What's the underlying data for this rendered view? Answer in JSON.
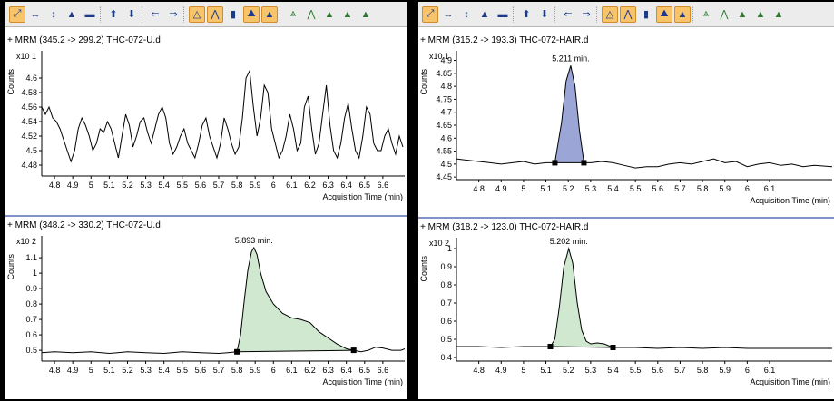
{
  "toolbar_icons": [
    "autoscale-icon",
    "zoom-x-icon",
    "zoom-y-icon",
    "peak-label-icon",
    "baseline-icon",
    "export-icon",
    "copy-icon",
    "back-icon",
    "forward-icon",
    "integrate-icon",
    "manual-integrate-icon",
    "bar-chart-icon",
    "peak-find-icon",
    "threshold-icon",
    "smooth-icon",
    "spectrum-icon",
    "overlay-icon",
    "compare-icon",
    "zoom-peak-icon",
    "more-icon"
  ],
  "panels": [
    {
      "charts": [
        {
          "title": "MRM (345.2 -> 299.2) THC-072-U.d",
          "ylabel": "Counts",
          "multiplier": "x10 1",
          "xlabel": "Acquisition Time (min)",
          "peak_label": "",
          "chart_data": {
            "type": "line",
            "xlim": [
              4.73,
              6.72
            ],
            "ylim": [
              4.465,
              4.635
            ],
            "xticks": [
              "4.8",
              "4.9",
              "5",
              "5.1",
              "5.2",
              "5.3",
              "5.4",
              "5.5",
              "5.6",
              "5.7",
              "5.8",
              "5.9",
              "6",
              "6.1",
              "6.2",
              "6.3",
              "6.4",
              "6.5",
              "6.6"
            ],
            "yticks": [
              "4.48",
              "4.5",
              "4.52",
              "4.54",
              "4.56",
              "4.58",
              "4.6"
            ],
            "x": [
              4.73,
              4.75,
              4.77,
              4.79,
              4.81,
              4.83,
              4.85,
              4.87,
              4.89,
              4.91,
              4.93,
              4.95,
              4.97,
              4.99,
              5.01,
              5.03,
              5.05,
              5.07,
              5.09,
              5.11,
              5.13,
              5.15,
              5.17,
              5.19,
              5.21,
              5.23,
              5.25,
              5.27,
              5.29,
              5.31,
              5.33,
              5.35,
              5.37,
              5.39,
              5.41,
              5.43,
              5.45,
              5.47,
              5.49,
              5.51,
              5.53,
              5.55,
              5.57,
              5.59,
              5.61,
              5.63,
              5.65,
              5.67,
              5.69,
              5.71,
              5.73,
              5.75,
              5.77,
              5.79,
              5.81,
              5.83,
              5.85,
              5.87,
              5.89,
              5.91,
              5.93,
              5.95,
              5.97,
              5.99,
              6.01,
              6.03,
              6.05,
              6.07,
              6.09,
              6.11,
              6.13,
              6.15,
              6.17,
              6.19,
              6.21,
              6.23,
              6.25,
              6.27,
              6.29,
              6.31,
              6.33,
              6.35,
              6.37,
              6.39,
              6.41,
              6.43,
              6.45,
              6.47,
              6.49,
              6.51,
              6.53,
              6.55,
              6.57,
              6.59,
              6.61,
              6.63,
              6.65,
              6.67,
              6.69,
              6.71
            ],
            "y": [
              4.56,
              4.55,
              4.56,
              4.545,
              4.54,
              4.53,
              4.515,
              4.5,
              4.485,
              4.5,
              4.53,
              4.545,
              4.535,
              4.52,
              4.5,
              4.51,
              4.53,
              4.525,
              4.54,
              4.53,
              4.51,
              4.49,
              4.52,
              4.55,
              4.535,
              4.505,
              4.52,
              4.54,
              4.545,
              4.525,
              4.51,
              4.53,
              4.55,
              4.56,
              4.545,
              4.51,
              4.495,
              4.505,
              4.52,
              4.53,
              4.51,
              4.5,
              4.49,
              4.51,
              4.535,
              4.545,
              4.52,
              4.505,
              4.49,
              4.51,
              4.545,
              4.53,
              4.51,
              4.495,
              4.505,
              4.545,
              4.6,
              4.61,
              4.56,
              4.52,
              4.545,
              4.59,
              4.58,
              4.53,
              4.51,
              4.49,
              4.5,
              4.52,
              4.55,
              4.53,
              4.5,
              4.51,
              4.56,
              4.575,
              4.53,
              4.495,
              4.51,
              4.55,
              4.59,
              4.535,
              4.5,
              4.49,
              4.51,
              4.545,
              4.565,
              4.53,
              4.5,
              4.49,
              4.52,
              4.56,
              4.55,
              4.51,
              4.5,
              4.5,
              4.52,
              4.53,
              4.51,
              4.495,
              4.52,
              4.505
            ]
          }
        },
        {
          "title": "MRM (348.2 -> 330.2) THC-072-U.d",
          "ylabel": "Counts",
          "multiplier": "x10 2",
          "xlabel": "Acquisition Time (min)",
          "peak_label": "5.893 min.",
          "chart_data": {
            "type": "area",
            "xlim": [
              4.73,
              6.72
            ],
            "ylim": [
              0.43,
              1.23
            ],
            "xticks": [
              "4.8",
              "4.9",
              "5",
              "5.1",
              "5.2",
              "5.3",
              "5.4",
              "5.5",
              "5.6",
              "5.7",
              "5.8",
              "5.9",
              "6",
              "6.1",
              "6.2",
              "6.3",
              "6.4",
              "6.5",
              "6.6"
            ],
            "yticks": [
              "0.5",
              "0.6",
              "0.7",
              "0.8",
              "0.9",
              "1",
              "1.1"
            ],
            "x": [
              4.73,
              4.8,
              4.9,
              5.0,
              5.1,
              5.2,
              5.3,
              5.4,
              5.5,
              5.6,
              5.7,
              5.75,
              5.8,
              5.82,
              5.84,
              5.86,
              5.88,
              5.893,
              5.91,
              5.93,
              5.96,
              6.0,
              6.05,
              6.1,
              6.15,
              6.2,
              6.25,
              6.3,
              6.35,
              6.4,
              6.44,
              6.48,
              6.52,
              6.56,
              6.6,
              6.65,
              6.7,
              6.72
            ],
            "y": [
              0.485,
              0.49,
              0.485,
              0.49,
              0.48,
              0.49,
              0.485,
              0.48,
              0.49,
              0.485,
              0.48,
              0.485,
              0.49,
              0.6,
              0.82,
              1.02,
              1.14,
              1.165,
              1.12,
              1.0,
              0.88,
              0.8,
              0.74,
              0.71,
              0.7,
              0.68,
              0.62,
              0.58,
              0.54,
              0.51,
              0.5,
              0.49,
              0.5,
              0.52,
              0.515,
              0.5,
              0.5,
              0.51
            ],
            "integration": [
              5.8,
              6.44
            ],
            "integration_y": [
              0.49,
              0.5
            ]
          }
        }
      ]
    },
    {
      "charts": [
        {
          "title": "MRM (315.2 -> 193.3) THC-072-HAIR.d",
          "ylabel": "Counts",
          "multiplier": "x10 1",
          "xlabel": "Acquisition Time (min)",
          "peak_label": "5.211 min.",
          "chart_data": {
            "type": "area",
            "xlim": [
              4.7,
              6.38
            ],
            "ylim": [
              4.44,
              4.93
            ],
            "xticks": [
              "4.8",
              "4.9",
              "5",
              "5.1",
              "5.2",
              "5.3",
              "5.4",
              "5.5",
              "5.6",
              "5.7",
              "5.8",
              "5.9",
              "6",
              "6.1"
            ],
            "yticks": [
              "4.45",
              "4.5",
              "4.55",
              "4.6",
              "4.65",
              "4.7",
              "4.75",
              "4.8",
              "4.85",
              "4.9"
            ],
            "x": [
              4.7,
              4.75,
              4.8,
              4.85,
              4.9,
              4.95,
              5.0,
              5.05,
              5.1,
              5.14,
              5.17,
              5.19,
              5.211,
              5.23,
              5.25,
              5.27,
              5.3,
              5.35,
              5.4,
              5.45,
              5.5,
              5.55,
              5.6,
              5.65,
              5.7,
              5.75,
              5.8,
              5.85,
              5.9,
              5.95,
              6.0,
              6.05,
              6.1,
              6.15,
              6.2,
              6.25,
              6.3,
              6.38
            ],
            "y": [
              4.52,
              4.515,
              4.51,
              4.505,
              4.5,
              4.505,
              4.51,
              4.5,
              4.505,
              4.505,
              4.66,
              4.82,
              4.88,
              4.8,
              4.63,
              4.505,
              4.505,
              4.51,
              4.505,
              4.495,
              4.485,
              4.49,
              4.49,
              4.5,
              4.505,
              4.5,
              4.51,
              4.52,
              4.505,
              4.51,
              4.49,
              4.5,
              4.505,
              4.495,
              4.5,
              4.49,
              4.495,
              4.49
            ],
            "integration": [
              5.14,
              5.27
            ],
            "integration_y": [
              4.505,
              4.505
            ]
          }
        },
        {
          "title": "MRM (318.2 -> 123.0) THC-072-HAIR.d",
          "ylabel": "Counts",
          "multiplier": "x10 2",
          "xlabel": "Acquisition Time (min)",
          "peak_label": "5.202 min.",
          "chart_data": {
            "type": "area",
            "xlim": [
              4.7,
              6.38
            ],
            "ylim": [
              0.38,
              1.05
            ],
            "xticks": [
              "4.8",
              "4.9",
              "5",
              "5.1",
              "5.2",
              "5.3",
              "5.4",
              "5.5",
              "5.6",
              "5.7",
              "5.8",
              "5.9",
              "6",
              "6.1"
            ],
            "yticks": [
              "0.4",
              "0.5",
              "0.6",
              "0.7",
              "0.8",
              "0.9",
              "1"
            ],
            "x": [
              4.7,
              4.8,
              4.9,
              5.0,
              5.05,
              5.1,
              5.12,
              5.14,
              5.16,
              5.18,
              5.202,
              5.22,
              5.24,
              5.26,
              5.28,
              5.3,
              5.33,
              5.36,
              5.4,
              5.5,
              5.6,
              5.7,
              5.8,
              5.9,
              6.0,
              6.1,
              6.2,
              6.38
            ],
            "y": [
              0.46,
              0.46,
              0.455,
              0.46,
              0.46,
              0.46,
              0.46,
              0.5,
              0.68,
              0.9,
              1.0,
              0.92,
              0.7,
              0.55,
              0.49,
              0.475,
              0.48,
              0.475,
              0.455,
              0.455,
              0.45,
              0.455,
              0.45,
              0.455,
              0.45,
              0.45,
              0.45,
              0.45
            ],
            "integration": [
              5.12,
              5.4
            ],
            "integration_y": [
              0.46,
              0.455
            ]
          }
        }
      ]
    }
  ]
}
